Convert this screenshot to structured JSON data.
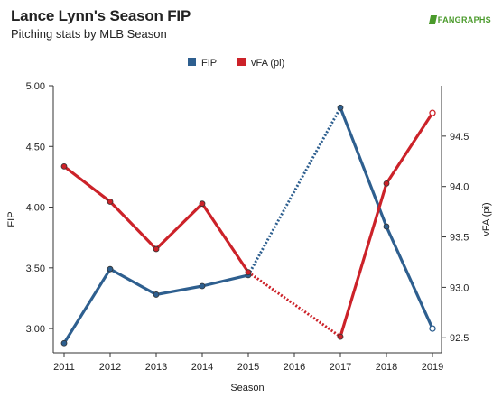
{
  "header": {
    "title": "Lance Lynn's Season FIP",
    "subtitle": "Pitching stats by MLB Season",
    "logo_text": "FANGRAPHS"
  },
  "chart_data": {
    "type": "line",
    "title": "Lance Lynn's Season FIP",
    "subtitle": "Pitching stats by MLB Season",
    "xlabel": "Season",
    "ylabel": "FIP",
    "y2label": "vFA (pi)",
    "categories": [
      "2011",
      "2012",
      "2013",
      "2014",
      "2015",
      "2016",
      "2017",
      "2018",
      "2019"
    ],
    "ylim": [
      2.8,
      5.0
    ],
    "y2lim": [
      92.35,
      95.0
    ],
    "y_ticks": [
      "3.00",
      "3.50",
      "4.00",
      "4.50",
      "5.00"
    ],
    "y2_ticks": [
      "92.5",
      "93.0",
      "93.5",
      "94.0",
      "94.5"
    ],
    "legend_position": "top-center",
    "grid": false,
    "series": [
      {
        "name": "FIP",
        "axis": "left",
        "color": "#2e5f8f",
        "values": [
          2.88,
          3.49,
          3.28,
          3.35,
          3.44,
          null,
          4.82,
          3.84,
          3.0
        ],
        "gap_style": "dotted",
        "last_point_hollow": true
      },
      {
        "name": "vFA (pi)",
        "axis": "right",
        "color": "#cc2229",
        "values": [
          94.2,
          93.85,
          93.38,
          93.83,
          93.15,
          null,
          92.51,
          94.03,
          94.73
        ],
        "gap_style": "dotted",
        "last_point_hollow": true
      }
    ]
  }
}
